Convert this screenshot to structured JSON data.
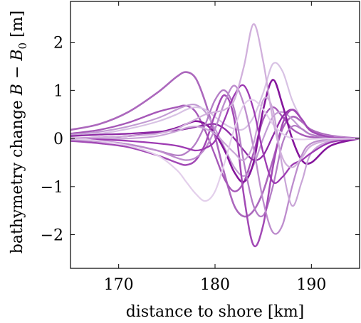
{
  "chart_data": {
    "type": "line",
    "title": "",
    "xlabel": "distance to shore [km]",
    "ylabel": {
      "prefix": "bathymetry change ",
      "var_b": "B",
      "minus": " − ",
      "var_b0": "B",
      "sub_0": "0",
      "unit": " [m]"
    },
    "xlim": [
      165,
      195
    ],
    "ylim": [
      -2.7,
      2.85
    ],
    "xticks": [
      170,
      180,
      190
    ],
    "yticks": [
      -2,
      -1,
      0,
      1,
      2
    ],
    "ytick_labels": [
      "−2",
      "−1",
      "0",
      "1",
      "2"
    ],
    "grid": false,
    "legend": "none",
    "x_sample": [
      165,
      168,
      171,
      174,
      176,
      177,
      178,
      179,
      180,
      181,
      182,
      183,
      184,
      185,
      186,
      187,
      188,
      189,
      190,
      192,
      195
    ],
    "series": [
      {
        "color": "#ac68bd",
        "width": 2.6,
        "values": [
          0.18,
          0.3,
          0.55,
          0.95,
          1.28,
          1.38,
          1.25,
          0.75,
          0.05,
          -0.75,
          -1.4,
          -1.62,
          -1.5,
          -1.1,
          -0.45,
          0.2,
          0.45,
          0.35,
          0.18,
          0.06,
          0.0
        ]
      },
      {
        "color": "#a658b8",
        "width": 2.4,
        "values": [
          0.1,
          0.18,
          0.33,
          0.55,
          0.65,
          0.68,
          0.55,
          0.15,
          -0.35,
          -0.85,
          -1.1,
          -0.9,
          -0.3,
          0.4,
          0.65,
          0.45,
          0.2,
          0.08,
          0.03,
          0.01,
          0.0
        ]
      },
      {
        "color": "#c29bd3",
        "width": 2.2,
        "values": [
          0.08,
          0.14,
          0.25,
          0.42,
          0.6,
          0.68,
          0.7,
          0.55,
          0.2,
          -0.2,
          -0.6,
          -0.78,
          -0.55,
          0.0,
          0.45,
          0.55,
          0.4,
          0.2,
          0.08,
          0.02,
          0.0
        ]
      },
      {
        "color": "#d8c2e4",
        "width": 2.2,
        "values": [
          0.05,
          0.1,
          0.2,
          0.35,
          0.5,
          0.6,
          0.65,
          0.6,
          0.45,
          0.3,
          0.2,
          0.2,
          0.45,
          0.95,
          1.55,
          1.4,
          0.8,
          0.4,
          0.15,
          0.04,
          0.0
        ]
      },
      {
        "color": "#85169c",
        "width": 2.6,
        "values": [
          0.0,
          0.02,
          0.05,
          0.12,
          0.22,
          0.3,
          0.36,
          0.3,
          0.1,
          -0.25,
          -0.7,
          -0.9,
          -0.5,
          0.6,
          1.22,
          0.7,
          0.0,
          -0.45,
          -0.5,
          -0.15,
          0.0
        ]
      },
      {
        "color": "#8e2aa5",
        "width": 2.3,
        "values": [
          0.05,
          0.08,
          0.1,
          0.14,
          0.17,
          0.2,
          0.24,
          0.28,
          0.3,
          0.2,
          0.0,
          -0.25,
          -0.45,
          -0.35,
          0.05,
          0.45,
          0.6,
          0.4,
          0.15,
          0.03,
          0.0
        ]
      },
      {
        "color": "#b47dc6",
        "width": 2.3,
        "values": [
          0.0,
          -0.05,
          -0.12,
          -0.25,
          -0.35,
          -0.3,
          -0.1,
          0.3,
          0.8,
          1.0,
          0.6,
          -0.5,
          -1.4,
          -1.6,
          -1.0,
          -0.1,
          0.25,
          0.2,
          0.08,
          0.02,
          0.0
        ]
      },
      {
        "color": "#a249b5",
        "width": 2.5,
        "values": [
          -0.05,
          -0.1,
          -0.18,
          -0.35,
          -0.5,
          -0.55,
          -0.45,
          -0.1,
          0.5,
          0.9,
          0.4,
          -1.2,
          -2.22,
          -1.8,
          -0.6,
          0.3,
          0.6,
          0.4,
          0.15,
          0.03,
          0.0
        ]
      },
      {
        "color": "#bd8ccd",
        "width": 2.3,
        "values": [
          -0.03,
          -0.06,
          -0.12,
          -0.25,
          -0.4,
          -0.45,
          -0.4,
          -0.2,
          0.2,
          0.75,
          1.1,
          0.7,
          -0.2,
          -1.3,
          -1.95,
          -1.8,
          -1.0,
          -0.35,
          -0.1,
          -0.02,
          0.0
        ]
      },
      {
        "color": "#c9a5d7",
        "width": 2.2,
        "values": [
          0.0,
          0.0,
          0.0,
          0.05,
          0.15,
          0.22,
          0.25,
          0.2,
          0.1,
          -0.1,
          -0.3,
          -0.45,
          -0.1,
          0.8,
          0.6,
          -0.6,
          -1.4,
          -0.9,
          -0.3,
          -0.05,
          0.0
        ]
      },
      {
        "color": "#9d3ab2",
        "width": 2.3,
        "values": [
          0.0,
          -0.02,
          -0.05,
          -0.1,
          -0.15,
          -0.2,
          -0.25,
          -0.2,
          -0.05,
          0.4,
          0.9,
          1.1,
          0.6,
          -0.3,
          -0.9,
          -0.8,
          -0.55,
          -0.45,
          -0.3,
          -0.08,
          0.0
        ]
      },
      {
        "color": "#e3cfeb",
        "width": 2.2,
        "values": [
          0.0,
          -0.05,
          -0.15,
          -0.35,
          -0.65,
          -0.9,
          -1.15,
          -1.3,
          -1.1,
          -0.5,
          0.2,
          0.7,
          0.8,
          0.6,
          0.3,
          0.1,
          0.0,
          -0.02,
          -0.01,
          0.0,
          0.0
        ]
      },
      {
        "color": "#d1b0dc",
        "width": 2.3,
        "values": [
          0.0,
          0.02,
          0.05,
          0.1,
          0.2,
          0.3,
          0.4,
          0.5,
          0.55,
          0.6,
          0.8,
          1.5,
          2.38,
          1.6,
          0.4,
          -0.4,
          -0.6,
          -0.4,
          -0.15,
          -0.03,
          0.0
        ]
      }
    ]
  }
}
